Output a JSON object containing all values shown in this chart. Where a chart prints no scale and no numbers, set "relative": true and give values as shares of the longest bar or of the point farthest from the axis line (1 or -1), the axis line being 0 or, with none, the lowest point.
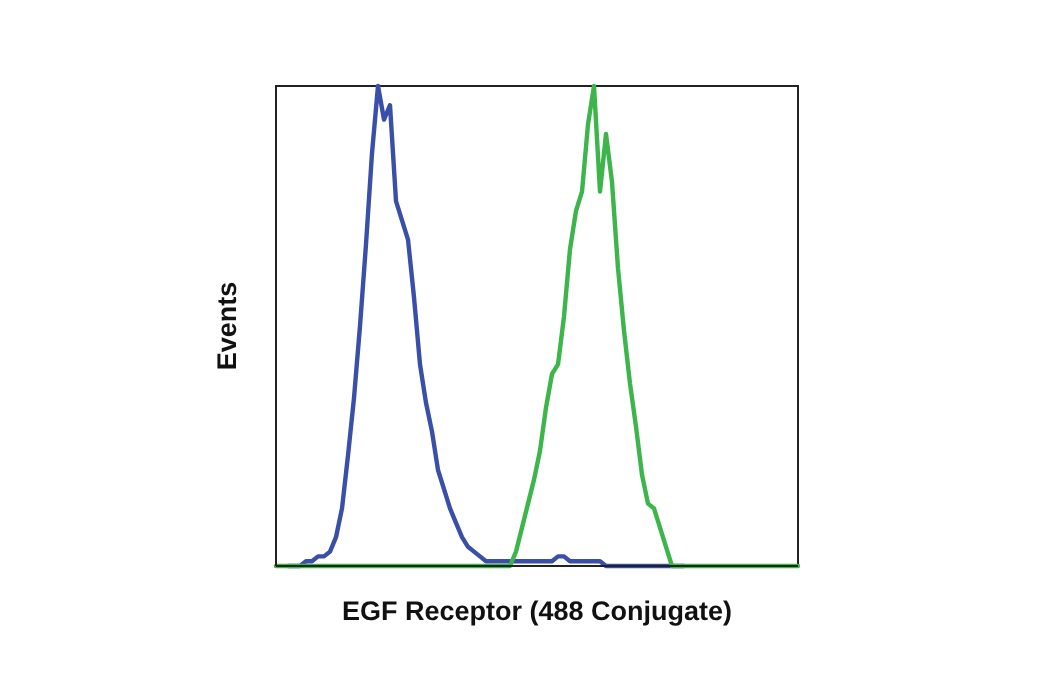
{
  "chart_data": {
    "type": "line",
    "relative": true,
    "xlabel": "EGF Receptor (488 Conjugate)",
    "ylabel": "Events",
    "marker": "none",
    "line_style": "solid",
    "categories": [
      null,
      null,
      null,
      null,
      null,
      null,
      null,
      null,
      null,
      null,
      null,
      null,
      null,
      null,
      null,
      null,
      null,
      null,
      null,
      null,
      null,
      null,
      null,
      null,
      null,
      null,
      null,
      null,
      null,
      null,
      null,
      null,
      null,
      null,
      null,
      null,
      null,
      null,
      null,
      null,
      null,
      null,
      null,
      null,
      null,
      null,
      null,
      null,
      null,
      null,
      null,
      null,
      null,
      null,
      null,
      null,
      null,
      null,
      null,
      null,
      null,
      null,
      null,
      null,
      null,
      null,
      null,
      null,
      null,
      null,
      null,
      null,
      null,
      null,
      null,
      null,
      null,
      null,
      null,
      null,
      null,
      null,
      null,
      null,
      null,
      null,
      null,
      null
    ],
    "series": [
      {
        "color": "#3a4fa8",
        "values": [
          null,
          null,
          0,
          0,
          0,
          0.01,
          0.01,
          0.02,
          0.02,
          0.03,
          0.06,
          0.12,
          0.23,
          0.35,
          0.5,
          0.67,
          0.86,
          1,
          0.93,
          0.96,
          0.76,
          0.72,
          0.68,
          0.56,
          0.42,
          0.34,
          0.28,
          0.2,
          0.16,
          0.12,
          0.09,
          0.06,
          0.04,
          0.03,
          0.02,
          0.01,
          0.01,
          0.01,
          0.01,
          0.01,
          0.01,
          0.01,
          0.01,
          0.01,
          0.01,
          0.01,
          0.01,
          0.02,
          0.02,
          0.01,
          0.01,
          0.01,
          0.01,
          0.01,
          0.01,
          0,
          0,
          0,
          0,
          0,
          0,
          0,
          0,
          0,
          0,
          0,
          0,
          0,
          0,
          null,
          null,
          null,
          null,
          null,
          null,
          null,
          null,
          null,
          null,
          null,
          null,
          null,
          null,
          null,
          null,
          null,
          null,
          null
        ]
      },
      {
        "color": "#3cb54a",
        "values": [
          0,
          0,
          0,
          0,
          0,
          0,
          0,
          0,
          0,
          0,
          0,
          0,
          0,
          0,
          0,
          0,
          0,
          0,
          0,
          0,
          0,
          0,
          0,
          0,
          0,
          0,
          0,
          0,
          0,
          0,
          0,
          0,
          0,
          0,
          0,
          0,
          0,
          0,
          0,
          0,
          0.03,
          0.08,
          0.13,
          0.18,
          0.24,
          0.33,
          0.4,
          0.42,
          0.52,
          0.66,
          0.74,
          0.78,
          0.92,
          1,
          0.78,
          0.9,
          0.8,
          0.62,
          0.49,
          0.38,
          0.29,
          0.19,
          0.13,
          0.12,
          0.08,
          0.04,
          0,
          0,
          0,
          0,
          0,
          0,
          0,
          0,
          0,
          0,
          0,
          0,
          0,
          0,
          0,
          0,
          0,
          0,
          0,
          0,
          0,
          0
        ]
      }
    ]
  }
}
